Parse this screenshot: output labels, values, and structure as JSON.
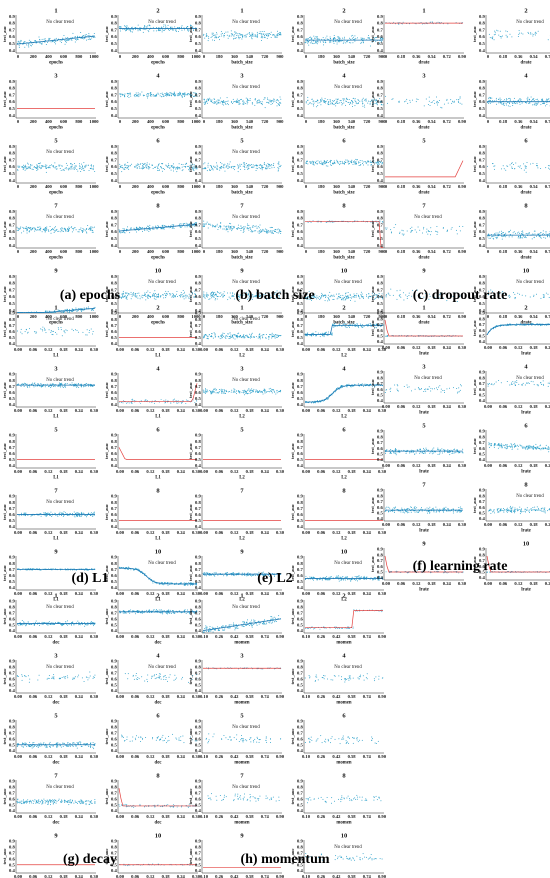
{
  "chart_data": [
    {
      "id": "a",
      "type": "scatter",
      "caption": "(a) epochs",
      "xlabel": "epochs",
      "ylabel": "test_auc",
      "xticks": [
        "0",
        "200",
        "400",
        "600",
        "800",
        "1000"
      ],
      "yticks": [
        "0.4",
        "0.5",
        "0.6",
        "0.7",
        "0.8",
        "0.9"
      ],
      "panels": [
        {
          "label": "1",
          "annotation": "No clear trend",
          "trend": "rising-noisy",
          "base": 0.55,
          "spread": 0.09,
          "slope": 0.12,
          "xlabel": "epochs"
        },
        {
          "label": "2",
          "annotation": "No clear trend",
          "trend": "flat-line-scatter",
          "base": 0.72,
          "spread": 0.08,
          "xlabel": "epochs"
        },
        {
          "label": "3",
          "annotation": "",
          "trend": "flat-red",
          "base": 0.5,
          "spread": 0.0,
          "xlabel": "epochs"
        },
        {
          "label": "4",
          "annotation": "",
          "trend": "flat",
          "base": 0.7,
          "spread": 0.06,
          "xlabel": "epochs"
        },
        {
          "label": "5",
          "annotation": "No clear trend",
          "trend": "flat",
          "base": 0.6,
          "spread": 0.1,
          "xlabel": "epochs"
        },
        {
          "label": "6",
          "annotation": "",
          "trend": "flat",
          "base": 0.6,
          "spread": 0.11,
          "xlabel": "epochs"
        },
        {
          "label": "7",
          "annotation": "No clear trend",
          "trend": "flat",
          "base": 0.63,
          "spread": 0.08,
          "xlabel": "epochs"
        },
        {
          "label": "8",
          "annotation": "",
          "trend": "rising-noisy",
          "base": 0.66,
          "spread": 0.06,
          "slope": 0.1,
          "xlabel": "epochs"
        },
        {
          "label": "9",
          "annotation": "",
          "trend": "rising-noisy",
          "base": 0.38,
          "spread": 0.05,
          "slope": 0.1,
          "xlabel": "epochs"
        },
        {
          "label": "10",
          "annotation": "No clear trend",
          "trend": "flat",
          "base": 0.62,
          "spread": 0.1,
          "xlabel": "epochs"
        }
      ]
    },
    {
      "id": "b",
      "type": "scatter",
      "caption": "(b) batch size",
      "xlabel": "batch_size",
      "ylabel": "test_auc",
      "xticks": [
        "0",
        "180",
        "360",
        "540",
        "720",
        "900"
      ],
      "yticks": [
        "0.4",
        "0.5",
        "0.6",
        "0.7",
        "0.8",
        "0.9"
      ],
      "panels": [
        {
          "label": "1",
          "annotation": "No clear trend",
          "trend": "flat",
          "base": 0.62,
          "spread": 0.1,
          "xlabel": "batch_size"
        },
        {
          "label": "2",
          "annotation": "No clear trend",
          "trend": "flat-line-scatter",
          "base": 0.55,
          "spread": 0.1,
          "xlabel": "batch_size"
        },
        {
          "label": "3",
          "annotation": "No clear trend",
          "trend": "flat",
          "base": 0.6,
          "spread": 0.1,
          "xlabel": "batch_size"
        },
        {
          "label": "4",
          "annotation": "No clear trend",
          "trend": "flat",
          "base": 0.6,
          "spread": 0.1,
          "xlabel": "batch_size"
        },
        {
          "label": "5",
          "annotation": "No clear trend",
          "trend": "flat",
          "base": 0.6,
          "spread": 0.1,
          "xlabel": "batch_size"
        },
        {
          "label": "6",
          "annotation": "",
          "trend": "flat",
          "base": 0.66,
          "spread": 0.07,
          "xlabel": "batch_size"
        },
        {
          "label": "7",
          "annotation": "No clear trend",
          "trend": "falling-noisy",
          "base": 0.65,
          "spread": 0.09,
          "slope": -0.1,
          "xlabel": "batch_size"
        },
        {
          "label": "8",
          "annotation": "",
          "trend": "flat-red-drop",
          "base": 0.75,
          "spread": 0.02,
          "xlabel": "batch_size"
        },
        {
          "label": "9",
          "annotation": "No clear trend",
          "trend": "flat",
          "base": 0.62,
          "spread": 0.1,
          "xlabel": "batch_size"
        },
        {
          "label": "10",
          "annotation": "No clear trend",
          "trend": "flat",
          "base": 0.6,
          "spread": 0.1,
          "xlabel": "batch_size"
        }
      ]
    },
    {
      "id": "c",
      "type": "scatter",
      "caption": "(c) dropout rate",
      "xlabel": "drate",
      "ylabel": "test_auc",
      "xticks": [
        "0",
        "0.18",
        "0.36",
        "0.54",
        "0.72",
        "0.90"
      ],
      "yticks": [
        "0.4",
        "0.5",
        "0.6",
        "0.7",
        "0.8",
        "0.9"
      ],
      "panels": [
        {
          "label": "1",
          "annotation": "",
          "trend": "flat-red-scatter",
          "base": 0.8,
          "spread": 0.03,
          "xlabel": "drate"
        },
        {
          "label": "2",
          "annotation": "No clear trend",
          "trend": "sparse",
          "base": 0.62,
          "spread": 0.12,
          "xlabel": "drate"
        },
        {
          "label": "3",
          "annotation": "",
          "trend": "sparse",
          "base": 0.6,
          "spread": 0.12,
          "xlabel": "drate"
        },
        {
          "label": "4",
          "annotation": "",
          "trend": "flat-blue-line",
          "base": 0.6,
          "spread": 0.12,
          "xlabel": "drate"
        },
        {
          "label": "5",
          "annotation": "",
          "trend": "flat-red-spike",
          "base": 0.45,
          "spread": 0.0,
          "xlabel": "drate"
        },
        {
          "label": "6",
          "annotation": "",
          "trend": "sparse",
          "base": 0.6,
          "spread": 0.12,
          "xlabel": "drate"
        },
        {
          "label": "7",
          "annotation": "No clear trend",
          "trend": "sparse",
          "base": 0.62,
          "spread": 0.12,
          "xlabel": "drate"
        },
        {
          "label": "8",
          "annotation": "",
          "trend": "flat-blue-line",
          "base": 0.55,
          "spread": 0.1,
          "xlabel": "drate"
        },
        {
          "label": "9",
          "annotation": "",
          "trend": "sparse",
          "base": 0.62,
          "spread": 0.12,
          "xlabel": "drate"
        },
        {
          "label": "10",
          "annotation": "No clear trend",
          "trend": "sparse",
          "base": 0.62,
          "spread": 0.12,
          "xlabel": "drate"
        }
      ]
    },
    {
      "id": "d",
      "type": "scatter",
      "caption": "(d) L1",
      "xlabel": "L1",
      "ylabel": "test_auc",
      "xticks": [
        "0.00",
        "0.06",
        "0.12",
        "0.18",
        "0.24",
        "0.30"
      ],
      "yticks": [
        "0.4",
        "0.5",
        "0.6",
        "0.7",
        "0.8",
        "0.9"
      ],
      "panels": [
        {
          "label": "1",
          "annotation": "No clear trend",
          "trend": "sparse",
          "base": 0.6,
          "spread": 0.12,
          "xlabel": "L1"
        },
        {
          "label": "2",
          "annotation": "",
          "trend": "flat-red",
          "base": 0.5,
          "spread": 0.0,
          "xlabel": "L1"
        },
        {
          "label": "3",
          "annotation": "No clear trend",
          "trend": "flat-line-scatter",
          "base": 0.72,
          "spread": 0.06,
          "xlabel": "L1"
        },
        {
          "label": "4",
          "annotation": "",
          "trend": "flat-red-rise",
          "base": 0.45,
          "spread": 0.06,
          "xlabel": "L1"
        },
        {
          "label": "5",
          "annotation": "",
          "trend": "flat-red",
          "base": 0.5,
          "spread": 0.0,
          "xlabel": "L1"
        },
        {
          "label": "6",
          "annotation": "",
          "trend": "flat-red-start",
          "base": 0.5,
          "spread": 0.0,
          "xlabel": "L1"
        },
        {
          "label": "7",
          "annotation": "No clear trend",
          "trend": "flat-line-scatter",
          "base": 0.6,
          "spread": 0.06,
          "xlabel": "L1"
        },
        {
          "label": "8",
          "annotation": "",
          "trend": "flat-red",
          "base": 0.5,
          "spread": 0.0,
          "xlabel": "L1"
        },
        {
          "label": "9",
          "annotation": "",
          "trend": "flat-blue-line",
          "base": 0.7,
          "spread": 0.02,
          "xlabel": "L1"
        },
        {
          "label": "10",
          "annotation": "No clear trend",
          "trend": "sigmoid-down",
          "base": 0.65,
          "spread": 0.04,
          "xlabel": "L1"
        }
      ]
    },
    {
      "id": "e",
      "type": "scatter",
      "caption": "(e) L2",
      "xlabel": "L2",
      "ylabel": "test_auc",
      "xticks": [
        "0.00",
        "0.06",
        "0.12",
        "0.18",
        "0.24",
        "0.30"
      ],
      "yticks": [
        "0.4",
        "0.5",
        "0.6",
        "0.7",
        "0.8",
        "0.9"
      ],
      "panels": [
        {
          "label": "1",
          "annotation": "No clear trend",
          "trend": "flat",
          "base": 0.52,
          "spread": 0.08,
          "xlabel": "L2"
        },
        {
          "label": "2",
          "annotation": "",
          "trend": "step-up",
          "base": 0.55,
          "spread": 0.06,
          "xlabel": "L2"
        },
        {
          "label": "3",
          "annotation": "No clear trend",
          "trend": "flat",
          "base": 0.62,
          "spread": 0.08,
          "xlabel": "L2"
        },
        {
          "label": "4",
          "annotation": "",
          "trend": "sigmoid-up",
          "base": 0.55,
          "spread": 0.04,
          "xlabel": "L2"
        },
        {
          "label": "5",
          "annotation": "",
          "trend": "flat-red",
          "base": 0.5,
          "spread": 0.0,
          "xlabel": "L2"
        },
        {
          "label": "6",
          "annotation": "",
          "trend": "flat-red",
          "base": 0.5,
          "spread": 0.0,
          "xlabel": "L2"
        },
        {
          "label": "7",
          "annotation": "",
          "trend": "flat-red",
          "base": 0.5,
          "spread": 0.0,
          "xlabel": "L2"
        },
        {
          "label": "8",
          "annotation": "",
          "trend": "flat-red",
          "base": 0.5,
          "spread": 0.0,
          "xlabel": "L2"
        },
        {
          "label": "9",
          "annotation": "",
          "trend": "flat-line-scatter",
          "base": 0.62,
          "spread": 0.05,
          "xlabel": "L2"
        },
        {
          "label": "10",
          "annotation": "No clear trend",
          "trend": "flat-line-scatter",
          "base": 0.55,
          "spread": 0.06,
          "xlabel": "L2"
        }
      ]
    },
    {
      "id": "f",
      "type": "scatter",
      "caption": "(f) learning rate",
      "xlabel": "lrate",
      "ylabel": "test_auc",
      "xticks": [
        "0.00",
        "0.06",
        "0.12",
        "0.18",
        "0.24",
        "0.30"
      ],
      "yticks": [
        "0.4",
        "0.5",
        "0.6",
        "0.7",
        "0.8",
        "0.9"
      ],
      "panels": [
        {
          "label": "1",
          "annotation": "",
          "trend": "spike-start-red",
          "base": 0.5,
          "spread": 0.02,
          "xlabel": "lrate"
        },
        {
          "label": "2",
          "annotation": "",
          "trend": "rise-plateau",
          "base": 0.68,
          "spread": 0.03,
          "xlabel": "lrate"
        },
        {
          "label": "3",
          "annotation": "No clear trend",
          "trend": "sparse",
          "base": 0.6,
          "spread": 0.12,
          "xlabel": "lrate"
        },
        {
          "label": "4",
          "annotation": "No clear trend",
          "trend": "sparse",
          "base": 0.7,
          "spread": 0.08,
          "xlabel": "lrate"
        },
        {
          "label": "5",
          "annotation": "",
          "trend": "flat-line-scatter",
          "base": 0.55,
          "spread": 0.08,
          "xlabel": "lrate"
        },
        {
          "label": "6",
          "annotation": "",
          "trend": "falling-noisy",
          "base": 0.62,
          "spread": 0.08,
          "slope": -0.08,
          "xlabel": "lrate"
        },
        {
          "label": "7",
          "annotation": "",
          "trend": "flat-blue-line",
          "base": 0.55,
          "spread": 0.08,
          "xlabel": "lrate"
        },
        {
          "label": "8",
          "annotation": "No clear trend",
          "trend": "flat",
          "base": 0.55,
          "spread": 0.08,
          "xlabel": "lrate"
        },
        {
          "label": "9",
          "annotation": "",
          "trend": "spike-start-red",
          "base": 0.5,
          "spread": 0.03,
          "xlabel": "lrate"
        },
        {
          "label": "10",
          "annotation": "",
          "trend": "spike-start-red",
          "base": 0.5,
          "spread": 0.02,
          "xlabel": "lrate"
        }
      ]
    },
    {
      "id": "g",
      "type": "scatter",
      "caption": "(g) decay",
      "xlabel": "dec",
      "ylabel": "test_auc",
      "xticks": [
        "0.00",
        "0.06",
        "0.12",
        "0.18",
        "0.24",
        "0.30"
      ],
      "yticks": [
        "0.4",
        "0.5",
        "0.6",
        "0.7",
        "0.8",
        "0.9"
      ],
      "panels": [
        {
          "label": "1",
          "annotation": "No clear trend",
          "trend": "flat-line-scatter",
          "base": 0.52,
          "spread": 0.06,
          "xlabel": "dec"
        },
        {
          "label": "2",
          "annotation": "",
          "trend": "flat-line-scatter",
          "base": 0.72,
          "spread": 0.05,
          "xlabel": "dec"
        },
        {
          "label": "3",
          "annotation": "No clear trend",
          "trend": "sparse",
          "base": 0.62,
          "spread": 0.12,
          "xlabel": "dec"
        },
        {
          "label": "4",
          "annotation": "No clear trend",
          "trend": "sparse",
          "base": 0.62,
          "spread": 0.12,
          "xlabel": "dec"
        },
        {
          "label": "5",
          "annotation": "",
          "trend": "flat-line-scatter",
          "base": 0.5,
          "spread": 0.08,
          "xlabel": "dec"
        },
        {
          "label": "6",
          "annotation": "",
          "trend": "sparse",
          "base": 0.6,
          "spread": 0.12,
          "xlabel": "dec"
        },
        {
          "label": "7",
          "annotation": "No clear trend",
          "trend": "flat",
          "base": 0.55,
          "spread": 0.07,
          "xlabel": "dec"
        },
        {
          "label": "8",
          "annotation": "",
          "trend": "spike-start-red",
          "base": 0.48,
          "spread": 0.04,
          "xlabel": "dec"
        },
        {
          "label": "9",
          "annotation": "",
          "trend": "flat-red",
          "base": 0.5,
          "spread": 0.0,
          "xlabel": "dec"
        },
        {
          "label": "10",
          "annotation": "",
          "trend": "flat-red-scatter",
          "base": 0.5,
          "spread": 0.02,
          "xlabel": "dec"
        }
      ]
    },
    {
      "id": "h",
      "type": "scatter",
      "caption": "(h) momentum",
      "xlabel": "momen",
      "ylabel": "test_auc",
      "xticks": [
        "0.10",
        "0.26",
        "0.42",
        "0.58",
        "0.74",
        "0.90"
      ],
      "yticks": [
        "0.4",
        "0.5",
        "0.6",
        "0.7",
        "0.8",
        "0.9"
      ],
      "panels": [
        {
          "label": "1",
          "annotation": "No clear trend",
          "trend": "rising-noisy",
          "base": 0.5,
          "spread": 0.1,
          "slope": 0.2,
          "xlabel": "momen"
        },
        {
          "label": "2",
          "annotation": "",
          "trend": "step-up-red",
          "base": 0.45,
          "spread": 0.03,
          "xlabel": "momen"
        },
        {
          "label": "3",
          "annotation": "",
          "trend": "flat-red-scatter",
          "base": 0.78,
          "spread": 0.02,
          "xlabel": "momen"
        },
        {
          "label": "4",
          "annotation": "No clear trend",
          "trend": "sparse",
          "base": 0.62,
          "spread": 0.12,
          "xlabel": "momen"
        },
        {
          "label": "5",
          "annotation": "No clear trend",
          "trend": "sparse",
          "base": 0.6,
          "spread": 0.12,
          "xlabel": "momen"
        },
        {
          "label": "6",
          "annotation": "",
          "trend": "sparse",
          "base": 0.58,
          "spread": 0.12,
          "xlabel": "momen"
        },
        {
          "label": "7",
          "annotation": "No clear trend",
          "trend": "sparse",
          "base": 0.62,
          "spread": 0.12,
          "xlabel": "momen"
        },
        {
          "label": "8",
          "annotation": "",
          "trend": "sparse",
          "base": 0.6,
          "spread": 0.12,
          "xlabel": "momen"
        },
        {
          "label": "9",
          "annotation": "",
          "trend": "flat-red",
          "base": 0.45,
          "spread": 0.0,
          "xlabel": "momen"
        },
        {
          "label": "10",
          "annotation": "No clear trend",
          "trend": "sparse",
          "base": 0.62,
          "spread": 0.12,
          "xlabel": "momen"
        }
      ]
    }
  ],
  "style": {
    "scatter_color": "#2a9fc9",
    "line_color": "#1f78b4",
    "red_color": "#e4413f",
    "axis_color": "#222222"
  }
}
